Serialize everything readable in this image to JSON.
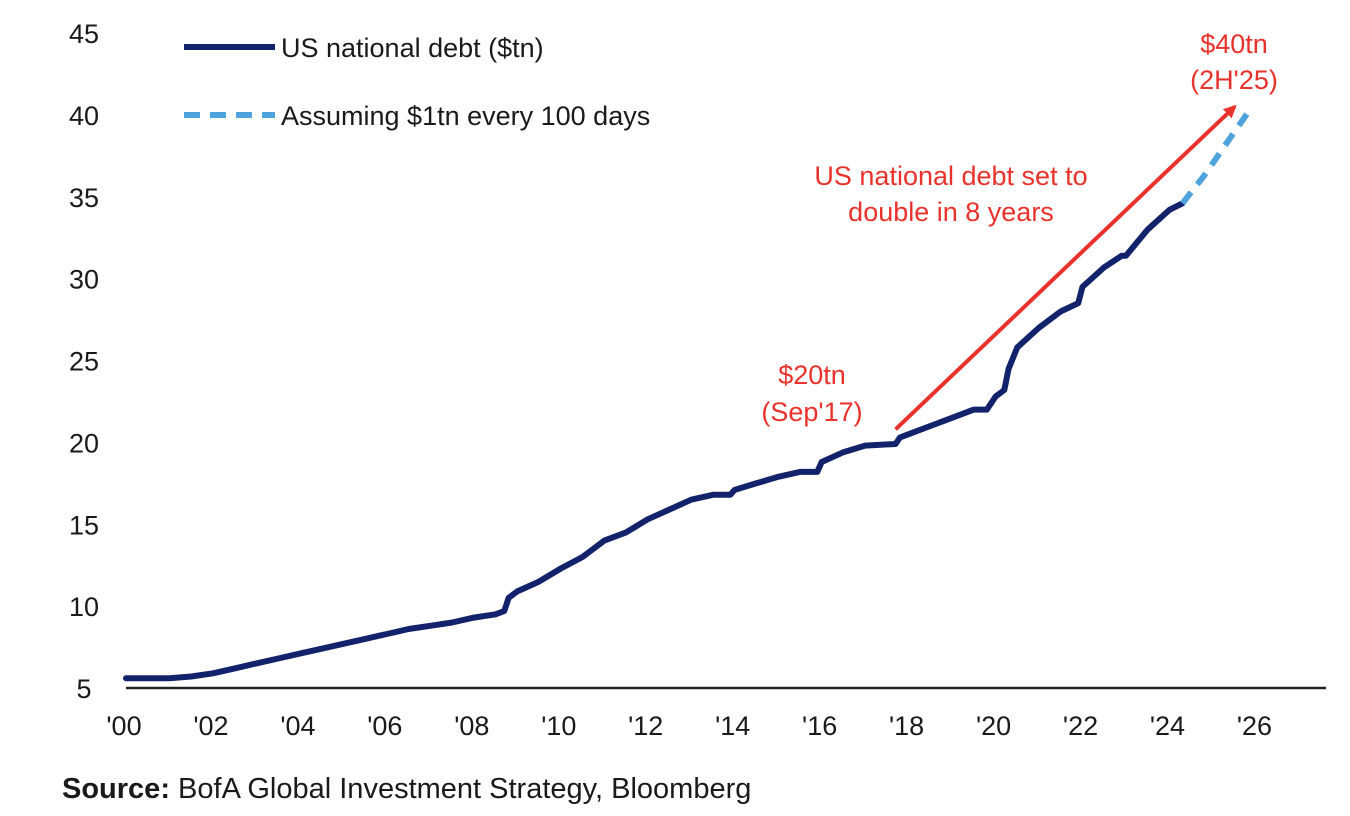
{
  "chart_data": {
    "type": "line",
    "title": "",
    "xlabel": "",
    "ylabel": "",
    "xlim": [
      2000,
      2027.6
    ],
    "ylim": [
      5,
      45
    ],
    "grid": false,
    "legend_position": "top-left",
    "colors": {
      "actual": "#12236b",
      "projection": "#4fa3dc",
      "annotation": "#e8322b",
      "axis": "#222222"
    },
    "y_ticks": [
      {
        "value": 5,
        "label": "5"
      },
      {
        "value": 10,
        "label": "10"
      },
      {
        "value": 15,
        "label": "15"
      },
      {
        "value": 20,
        "label": "20"
      },
      {
        "value": 25,
        "label": "25"
      },
      {
        "value": 30,
        "label": "30"
      },
      {
        "value": 35,
        "label": "35"
      },
      {
        "value": 40,
        "label": "40"
      },
      {
        "value": 45,
        "label": "45"
      }
    ],
    "x_ticks": [
      {
        "value": 2000,
        "label": "'00"
      },
      {
        "value": 2002,
        "label": "'02"
      },
      {
        "value": 2004,
        "label": "'04"
      },
      {
        "value": 2006,
        "label": "'06"
      },
      {
        "value": 2008,
        "label": "'08"
      },
      {
        "value": 2010,
        "label": "'10"
      },
      {
        "value": 2012,
        "label": "'12"
      },
      {
        "value": 2014,
        "label": "'14"
      },
      {
        "value": 2016,
        "label": "'16"
      },
      {
        "value": 2018,
        "label": "'18"
      },
      {
        "value": 2020,
        "label": "'20"
      },
      {
        "value": 2022,
        "label": "'22"
      },
      {
        "value": 2024,
        "label": "'24"
      },
      {
        "value": 2026,
        "label": "'26"
      }
    ],
    "series": [
      {
        "name": "US national debt ($tn)",
        "style": "solid",
        "x": [
          2000.0,
          2000.5,
          2001.0,
          2001.5,
          2002.0,
          2002.5,
          2003.0,
          2003.5,
          2004.0,
          2004.5,
          2005.0,
          2005.5,
          2006.0,
          2006.5,
          2007.0,
          2007.5,
          2008.0,
          2008.5,
          2008.7,
          2008.8,
          2009.0,
          2009.5,
          2010.0,
          2010.5,
          2011.0,
          2011.5,
          2012.0,
          2012.5,
          2013.0,
          2013.5,
          2013.9,
          2014.0,
          2014.5,
          2015.0,
          2015.5,
          2015.9,
          2016.0,
          2016.5,
          2017.0,
          2017.7,
          2017.8,
          2018.0,
          2018.5,
          2019.0,
          2019.5,
          2019.8,
          2020.0,
          2020.2,
          2020.3,
          2020.5,
          2021.0,
          2021.5,
          2021.9,
          2022.0,
          2022.5,
          2022.9,
          2023.0,
          2023.5,
          2024.0,
          2024.3
        ],
        "y": [
          5.6,
          5.6,
          5.6,
          5.7,
          5.9,
          6.2,
          6.5,
          6.8,
          7.1,
          7.4,
          7.7,
          8.0,
          8.3,
          8.6,
          8.8,
          9.0,
          9.3,
          9.5,
          9.7,
          10.5,
          10.9,
          11.5,
          12.3,
          13.0,
          14.0,
          14.5,
          15.3,
          15.9,
          16.5,
          16.8,
          16.8,
          17.1,
          17.5,
          17.9,
          18.2,
          18.2,
          18.8,
          19.4,
          19.8,
          19.9,
          20.3,
          20.5,
          21.0,
          21.5,
          22.0,
          22.0,
          22.8,
          23.2,
          24.5,
          25.8,
          27.0,
          28.0,
          28.5,
          29.5,
          30.7,
          31.4,
          31.4,
          33.0,
          34.2,
          34.6
        ]
      },
      {
        "name": "Assuming $1tn every 100 days",
        "style": "dashed",
        "x": [
          2024.3,
          2024.8,
          2025.4,
          2025.9
        ],
        "y": [
          34.6,
          36.3,
          38.6,
          40.5
        ]
      }
    ],
    "annotations": {
      "arrow_from": {
        "x": 2017.7,
        "y": 20.8
      },
      "arrow_to": {
        "x": 2025.5,
        "y": 40.5
      },
      "start_value": "$20tn",
      "start_date": "(Sep'17)",
      "end_value": "$40tn",
      "end_date": "(2H'25)",
      "headline_line1": "US national debt set to",
      "headline_line2": "double in 8 years"
    }
  },
  "footer": {
    "source_label": "Source:",
    "source_text": " BofA Global Investment Strategy, Bloomberg"
  }
}
